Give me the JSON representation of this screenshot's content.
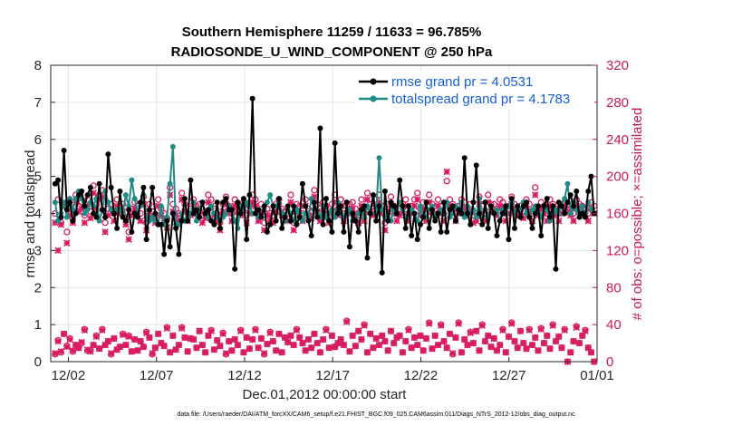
{
  "chart_data": {
    "type": "line",
    "title_line1": "Southern Hemisphere 11259 / 11633 = 96.785%",
    "title_line2": "RADIOSONDE_U_WIND_COMPONENT @ 250 hPa",
    "xlabel": "Dec.01,2012 00:00:00 start",
    "ylabel_left": "rmse and totalspread",
    "ylabel_right": "# of obs: o=possible; ×=assimilated",
    "footnote": "data file: /Users/raeder/DAI/ATM_forcXX/CAM6_setup/f.e21.FHIST_BGC.f09_025.CAM6assim.011/Diags_NTrS_2012-12/obs_diag_output.nc",
    "xlim": [
      0,
      31
    ],
    "ylim_left": [
      0,
      8
    ],
    "ylim_right": [
      0,
      320
    ],
    "x_ticks": [
      {
        "x": 1,
        "label": "12/02"
      },
      {
        "x": 6,
        "label": "12/07"
      },
      {
        "x": 11,
        "label": "12/12"
      },
      {
        "x": 16,
        "label": "12/17"
      },
      {
        "x": 21,
        "label": "12/22"
      },
      {
        "x": 26,
        "label": "12/27"
      },
      {
        "x": 31,
        "label": "01/01"
      }
    ],
    "y_ticks_left": [
      "0",
      "1",
      "2",
      "3",
      "4",
      "5",
      "6",
      "7",
      "8"
    ],
    "y_ticks_right": [
      "0",
      "40",
      "80",
      "120",
      "160",
      "200",
      "240",
      "280",
      "320"
    ],
    "legend": [
      {
        "label": "rmse grand pr = 4.0531",
        "color": "#000000"
      },
      {
        "label": "totalspread grand pr = 4.1783",
        "color": "#1f8a86"
      }
    ],
    "colors": {
      "rmse": "#000000",
      "spread": "#1f8a86",
      "obs": "#d81b60",
      "right_axis": "#c8175a",
      "legend_text": "#1560d6"
    },
    "series": [
      {
        "name": "rmse",
        "axis": "left",
        "values": [
          4.8,
          4.9,
          3.9,
          5.7,
          4.1,
          4.3,
          3.8,
          4.0,
          4.5,
          4.6,
          4.2,
          4.5,
          4.7,
          4.0,
          3.9,
          4.8,
          4.1,
          3.9,
          5.6,
          4.7,
          4.0,
          3.6,
          4.6,
          3.9,
          3.8,
          4.1,
          3.5,
          4.0,
          3.9,
          4.3,
          4.7,
          3.3,
          4.1,
          4.7,
          4.0,
          3.7,
          3.7,
          2.9,
          3.8,
          3.1,
          4.0,
          3.6,
          2.9,
          3.8,
          4.4,
          3.8,
          4.9,
          4.0,
          4.1,
          3.9,
          4.3,
          4.0,
          4.1,
          3.8,
          3.7,
          4.3,
          3.6,
          4.3,
          4.4,
          4.1,
          4.1,
          2.5,
          4.3,
          4.0,
          4.4,
          3.3,
          4.5,
          7.1,
          4.0,
          4.1,
          3.9,
          4.2,
          3.5,
          3.7,
          4.2,
          3.8,
          4.4,
          3.6,
          3.9,
          4.2,
          3.8,
          4.2,
          3.7,
          3.9,
          4.8,
          4.2,
          3.8,
          3.4,
          4.3,
          3.9,
          6.3,
          3.7,
          4.4,
          3.8,
          3.5,
          5.9,
          4.0,
          4.2,
          3.5,
          4.3,
          3.1,
          4.0,
          3.8,
          3.5,
          4.1,
          4.2,
          2.8,
          4.0,
          4.5,
          3.8,
          4.2,
          2.4,
          4.6,
          3.8,
          4.3,
          4.2,
          4.0,
          4.9,
          4.2,
          3.6,
          4.2,
          3.4,
          4.0,
          3.3,
          3.7,
          3.9,
          4.3,
          3.6,
          4.1,
          3.8,
          4.0,
          3.5,
          4.3,
          3.5,
          4.1,
          4.2,
          3.8,
          4.1,
          4.0,
          5.5,
          4.0,
          3.7,
          4.3,
          5.3,
          4.0,
          3.7,
          4.3,
          3.6,
          4.2,
          4.0,
          3.4,
          3.8,
          4.0,
          4.2,
          3.3,
          4.4,
          3.6,
          4.2,
          3.9,
          4.2,
          4.3,
          3.9,
          3.6,
          4.0,
          4.2,
          3.4,
          4.2,
          4.4,
          3.9,
          4.2,
          2.5,
          4.3,
          4.2,
          4.0,
          4.3,
          4.5,
          4.2,
          4.6,
          3.9,
          4.0,
          3.9,
          4.6,
          5.0,
          4.0
        ]
      },
      {
        "name": "totalspread",
        "axis": "left",
        "values": [
          4.3,
          3.8,
          4.0,
          4.3,
          3.9,
          4.4,
          4.1,
          4.4,
          4.6,
          4.4,
          4.0,
          4.1,
          4.3,
          4.2,
          4.4,
          3.8,
          4.1,
          4.6,
          4.3,
          4.1,
          4.0,
          4.1,
          4.1,
          4.0,
          4.5,
          4.2,
          4.9,
          4.4,
          4.0,
          4.2,
          4.5,
          3.9,
          3.8,
          3.9,
          3.8,
          3.7,
          4.2,
          3.7,
          3.9,
          4.8,
          5.8,
          3.7,
          3.7,
          4.0,
          3.8,
          3.9,
          4.0,
          4.3,
          3.8,
          4.1,
          4.3,
          4.0,
          3.9,
          4.2,
          4.0,
          3.9,
          3.8,
          3.9,
          4.0,
          4.2,
          4.1,
          3.8,
          3.6,
          4.2,
          4.1,
          4.3,
          4.2,
          4.0,
          4.0,
          3.9,
          3.9,
          4.1,
          4.3,
          4.5,
          4.2,
          4.2,
          4.3,
          4.0,
          3.8,
          4.1,
          4.0,
          3.8,
          4.1,
          4.0,
          3.8,
          4.0,
          3.9,
          4.4,
          4.1,
          4.0,
          3.9,
          4.2,
          3.9,
          4.0,
          4.1,
          3.9,
          4.3,
          4.0,
          3.9,
          4.0,
          4.1,
          3.8,
          3.8,
          4.0,
          4.1,
          3.9,
          4.2,
          4.0,
          4.5,
          4.0,
          5.5,
          4.1,
          3.9,
          4.0,
          3.8,
          4.1,
          4.0,
          4.3,
          4.1,
          3.9,
          3.9,
          4.1,
          4.0,
          3.8,
          4.2,
          4.0,
          3.9,
          4.1,
          4.2,
          3.9,
          4.0,
          4.1,
          4.0,
          4.3,
          3.9,
          4.0,
          4.2,
          4.1,
          4.3,
          3.9,
          4.2,
          4.0,
          4.1,
          3.9,
          4.4,
          3.9,
          4.1,
          3.9,
          4.2,
          4.0,
          4.1,
          3.8,
          4.1,
          4.0,
          4.2,
          4.3,
          4.0,
          4.2,
          4.1,
          4.3,
          4.0,
          3.9,
          4.1,
          4.2,
          4.0,
          3.9,
          4.2,
          4.1,
          3.8,
          4.0,
          4.1,
          4.0,
          4.2,
          4.4,
          4.8,
          4.0,
          4.3,
          4.1,
          4.0,
          4.2,
          4.0,
          4.3,
          4.1,
          4.0
        ]
      },
      {
        "name": "obs_possible",
        "axis": "right",
        "marker": "o",
        "values": [
          8,
          23,
          10,
          30,
          17,
          25,
          11,
          18,
          15,
          20,
          35,
          12,
          12,
          18,
          28,
          14,
          35,
          18,
          22,
          8,
          25,
          13,
          16,
          30,
          18,
          28,
          11,
          24,
          12,
          22,
          16,
          32,
          26,
          8,
          15,
          30,
          20,
          17,
          37,
          10,
          28,
          13,
          18,
          37,
          26,
          11,
          25,
          24,
          15,
          33,
          18,
          10,
          28,
          34,
          13,
          23,
          17,
          31,
          8,
          22,
          12,
          24,
          18,
          34,
          10,
          26,
          14,
          24,
          35,
          15,
          25,
          8,
          19,
          32,
          22,
          12,
          30,
          10,
          26,
          21,
          28,
          18,
          35,
          26,
          20,
          12,
          24,
          15,
          30,
          20,
          10,
          24,
          35,
          15,
          28,
          16,
          20,
          24,
          18,
          44,
          11,
          28,
          17,
          33,
          24,
          40,
          10,
          30,
          15,
          25,
          18,
          28,
          22,
          12,
          33,
          20,
          26,
          28,
          10,
          22,
          35,
          15,
          26,
          18,
          28,
          12,
          25,
          42,
          14,
          28,
          18,
          40,
          22,
          15,
          30,
          8,
          26,
          42,
          10,
          24,
          18,
          32,
          20,
          33,
          12,
          40,
          22,
          28,
          16,
          25,
          12,
          18,
          35,
          10,
          27,
          42,
          22,
          15,
          33,
          20,
          14,
          35,
          18,
          26,
          12,
          36,
          20,
          28,
          14,
          40,
          22,
          27,
          15,
          35,
          0,
          10,
          22,
          38,
          20,
          28,
          34,
          15,
          10,
          0
        ]
      },
      {
        "name": "obs_assimilated",
        "axis": "right",
        "marker": "x",
        "values": [
          9,
          22,
          11,
          30,
          16,
          24,
          12,
          18,
          15,
          21,
          34,
          13,
          11,
          18,
          27,
          14,
          34,
          18,
          22,
          9,
          25,
          13,
          16,
          29,
          18,
          27,
          11,
          24,
          12,
          22,
          16,
          31,
          26,
          9,
          15,
          30,
          20,
          17,
          36,
          10,
          28,
          13,
          18,
          36,
          26,
          11,
          25,
          24,
          15,
          33,
          18,
          10,
          28,
          33,
          13,
          23,
          17,
          30,
          9,
          22,
          12,
          24,
          18,
          33,
          10,
          26,
          14,
          24,
          34,
          15,
          25,
          9,
          19,
          31,
          22,
          12,
          30,
          10,
          26,
          21,
          28,
          18,
          34,
          26,
          20,
          12,
          24,
          15,
          30,
          20,
          10,
          24,
          34,
          15,
          28,
          16,
          20,
          24,
          18,
          43,
          11,
          28,
          17,
          33,
          24,
          39,
          10,
          30,
          15,
          25,
          18,
          28,
          22,
          12,
          33,
          20,
          26,
          28,
          10,
          22,
          34,
          15,
          26,
          18,
          28,
          12,
          25,
          41,
          14,
          28,
          18,
          39,
          22,
          15,
          30,
          9,
          26,
          41,
          10,
          24,
          18,
          31,
          20,
          33,
          12,
          39,
          22,
          28,
          16,
          25,
          12,
          18,
          34,
          10,
          27,
          41,
          22,
          15,
          33,
          20,
          14,
          34,
          18,
          26,
          12,
          35,
          20,
          28,
          14,
          39,
          22,
          27,
          15,
          34,
          0,
          10,
          22,
          37,
          20,
          28,
          33,
          15,
          10,
          0
        ]
      },
      {
        "name": "obs_upper_possible",
        "axis": "right",
        "marker": "o",
        "values": [
          160,
          175,
          150,
          170,
          140,
          165,
          155,
          180,
          168,
          172,
          158,
          175,
          162,
          190,
          170,
          180,
          185,
          150,
          165,
          170,
          160,
          175,
          168,
          170,
          155,
          140,
          165,
          172,
          168,
          160,
          178,
          150,
          170,
          162,
          158,
          175,
          165,
          160,
          155,
          188,
          170,
          165,
          160,
          182,
          170,
          160,
          165,
          175,
          168,
          170,
          158,
          162,
          180,
          175,
          165,
          160,
          150,
          170,
          178,
          168,
          160,
          175,
          170,
          165,
          172,
          158,
          168,
          180,
          175,
          160,
          170,
          150,
          165,
          160,
          158,
          170,
          175,
          165,
          162,
          160,
          180,
          150,
          170,
          168,
          160,
          175,
          165,
          162,
          185,
          170,
          160,
          172,
          168,
          158,
          170,
          180,
          165,
          175,
          160,
          168,
          170,
          172,
          165,
          158,
          175,
          160,
          182,
          170,
          165,
          175,
          180,
          168,
          150,
          170,
          178,
          168,
          160,
          165,
          170,
          175,
          160,
          168,
          175,
          182,
          165,
          172,
          160,
          180,
          170,
          165,
          175,
          168,
          160,
          195,
          175,
          170,
          160,
          168,
          175,
          172,
          165,
          170,
          158,
          160,
          178,
          168,
          160,
          180,
          170,
          170,
          165,
          175,
          172,
          160,
          168,
          178,
          170,
          165,
          168,
          162,
          175,
          170,
          160,
          188,
          165,
          172,
          168,
          160,
          175,
          170,
          165,
          160,
          168,
          172,
          170,
          165,
          160,
          175,
          170,
          168,
          165,
          160,
          172,
          168
        ]
      },
      {
        "name": "obs_upper_assimilated",
        "axis": "right",
        "marker": "x",
        "values": [
          150,
          120,
          148,
          168,
          128,
          158,
          150,
          172,
          162,
          165,
          150,
          168,
          155,
          182,
          165,
          175,
          178,
          140,
          158,
          165,
          152,
          168,
          160,
          162,
          148,
          132,
          158,
          165,
          160,
          152,
          170,
          142,
          162,
          155,
          150,
          168,
          158,
          152,
          145,
          180,
          162,
          158,
          152,
          175,
          162,
          152,
          158,
          168,
          160,
          162,
          150,
          155,
          172,
          168,
          158,
          152,
          142,
          162,
          170,
          160,
          152,
          168,
          162,
          158,
          165,
          150,
          160,
          172,
          168,
          152,
          162,
          142,
          158,
          152,
          150,
          162,
          168,
          158,
          155,
          152,
          172,
          142,
          162,
          160,
          152,
          168,
          158,
          155,
          178,
          162,
          152,
          165,
          160,
          150,
          162,
          172,
          158,
          168,
          152,
          160,
          162,
          165,
          158,
          150,
          168,
          152,
          175,
          162,
          158,
          168,
          172,
          160,
          142,
          162,
          170,
          160,
          152,
          158,
          162,
          168,
          152,
          160,
          168,
          175,
          158,
          165,
          152,
          172,
          162,
          158,
          168,
          160,
          152,
          205,
          168,
          162,
          152,
          160,
          168,
          165,
          158,
          162,
          150,
          152,
          170,
          160,
          152,
          172,
          162,
          162,
          158,
          168,
          165,
          152,
          160,
          170,
          162,
          158,
          160,
          155,
          168,
          162,
          152,
          180,
          158,
          165,
          160,
          152,
          168,
          162,
          158,
          152,
          160,
          165,
          162,
          158,
          152,
          168,
          162,
          160,
          158,
          152,
          165,
          160
        ]
      }
    ]
  }
}
